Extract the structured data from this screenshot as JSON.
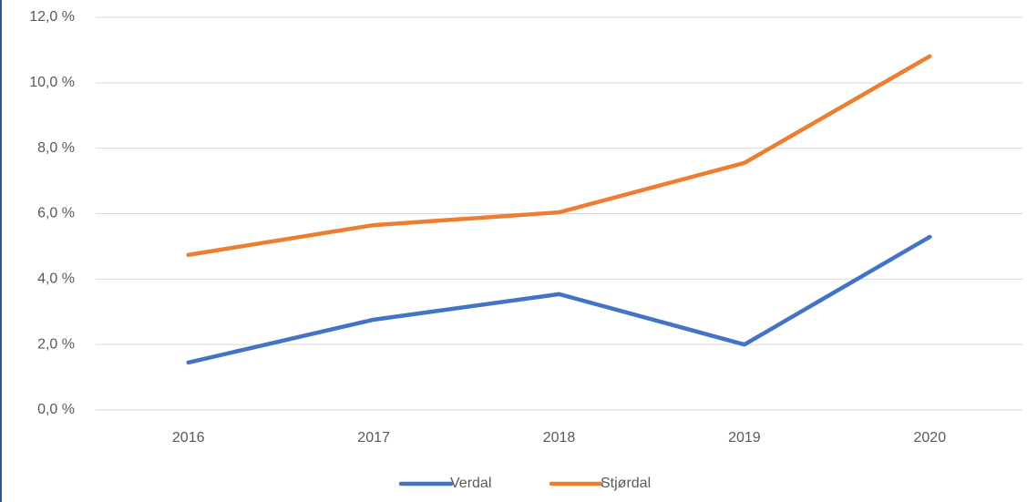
{
  "chart_data": {
    "type": "line",
    "categories": [
      "2016",
      "2017",
      "2018",
      "2019",
      "2020"
    ],
    "series": [
      {
        "name": "Verdal",
        "color": "#4472c4",
        "values": [
          1.45,
          2.76,
          3.54,
          2.0,
          5.29
        ]
      },
      {
        "name": "Stjørdal",
        "color": "#ed7d31",
        "values": [
          4.74,
          5.65,
          6.04,
          7.55,
          10.81
        ]
      }
    ],
    "ylim": [
      0,
      12
    ],
    "yticks": [
      {
        "value": 0,
        "label": "0,0 %"
      },
      {
        "value": 2,
        "label": "2,0 %"
      },
      {
        "value": 4,
        "label": "4,0 %"
      },
      {
        "value": 6,
        "label": "6,0 %"
      },
      {
        "value": 8,
        "label": "8,0 %"
      },
      {
        "value": 10,
        "label": "10,0 %"
      },
      {
        "value": 12,
        "label": "12,0 %"
      }
    ],
    "grid": true,
    "legend": "bottom"
  }
}
